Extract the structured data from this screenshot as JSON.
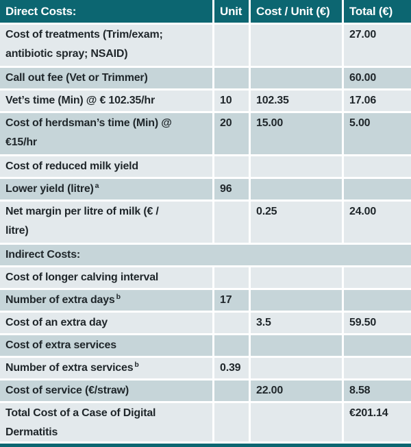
{
  "table": {
    "header": {
      "col1": "Direct Costs:",
      "col2": "Unit",
      "col3": "Cost / Unit (€)",
      "col4": "Total (€)"
    },
    "rows": [
      {
        "label": "Cost of treatments (Trim/exam;\nantibiotic spray; NSAID)",
        "unit": "",
        "cost_unit": "",
        "total": "27.00"
      },
      {
        "label": "Call out fee (Vet or Trimmer)",
        "unit": "",
        "cost_unit": "",
        "total": "60.00"
      },
      {
        "label": "Vet’s time (Min) @ € 102.35/hr",
        "unit": "10",
        "cost_unit": "102.35",
        "total": "17.06"
      },
      {
        "label": "Cost of herdsman’s time (Min) @\n€15/hr",
        "unit": "20",
        "cost_unit": "15.00",
        "total": "5.00"
      },
      {
        "label": "Cost of reduced milk yield",
        "unit": "",
        "cost_unit": "",
        "total": ""
      },
      {
        "label": "Lower yield (litre)",
        "sup": "a",
        "unit": "96",
        "cost_unit": "",
        "total": ""
      },
      {
        "label": "Net margin per litre of milk (€ /\nlitre)",
        "unit": "",
        "cost_unit": "0.25",
        "total": "24.00"
      },
      {
        "label": "Indirect Costs:"
      },
      {
        "label": "Cost of longer calving interval",
        "unit": "",
        "cost_unit": "",
        "total": ""
      },
      {
        "label": "Number of extra days",
        "sup": "b",
        "unit": "17",
        "cost_unit": "",
        "total": ""
      },
      {
        "label": "Cost of an extra day",
        "unit": "",
        "cost_unit": "3.5",
        "total": "59.50"
      },
      {
        "label": "Cost of extra services",
        "unit": "",
        "cost_unit": "",
        "total": ""
      },
      {
        "label": "Number of extra services",
        "sup": "b",
        "unit": "0.39",
        "cost_unit": "",
        "total": ""
      },
      {
        "label": "Cost of service (€/straw)",
        "unit": "",
        "cost_unit": "22.00",
        "total": "8.58"
      },
      {
        "label": "Total Cost of a Case of Digital\nDermatitis",
        "unit": "",
        "cost_unit": "",
        "total": "€201.14"
      }
    ],
    "colors": {
      "header_bg": "#0c6671",
      "header_text": "#ffffff",
      "row_light": "#e3e9ec",
      "row_dark": "#c6d5d9",
      "text": "#1f262a"
    }
  }
}
